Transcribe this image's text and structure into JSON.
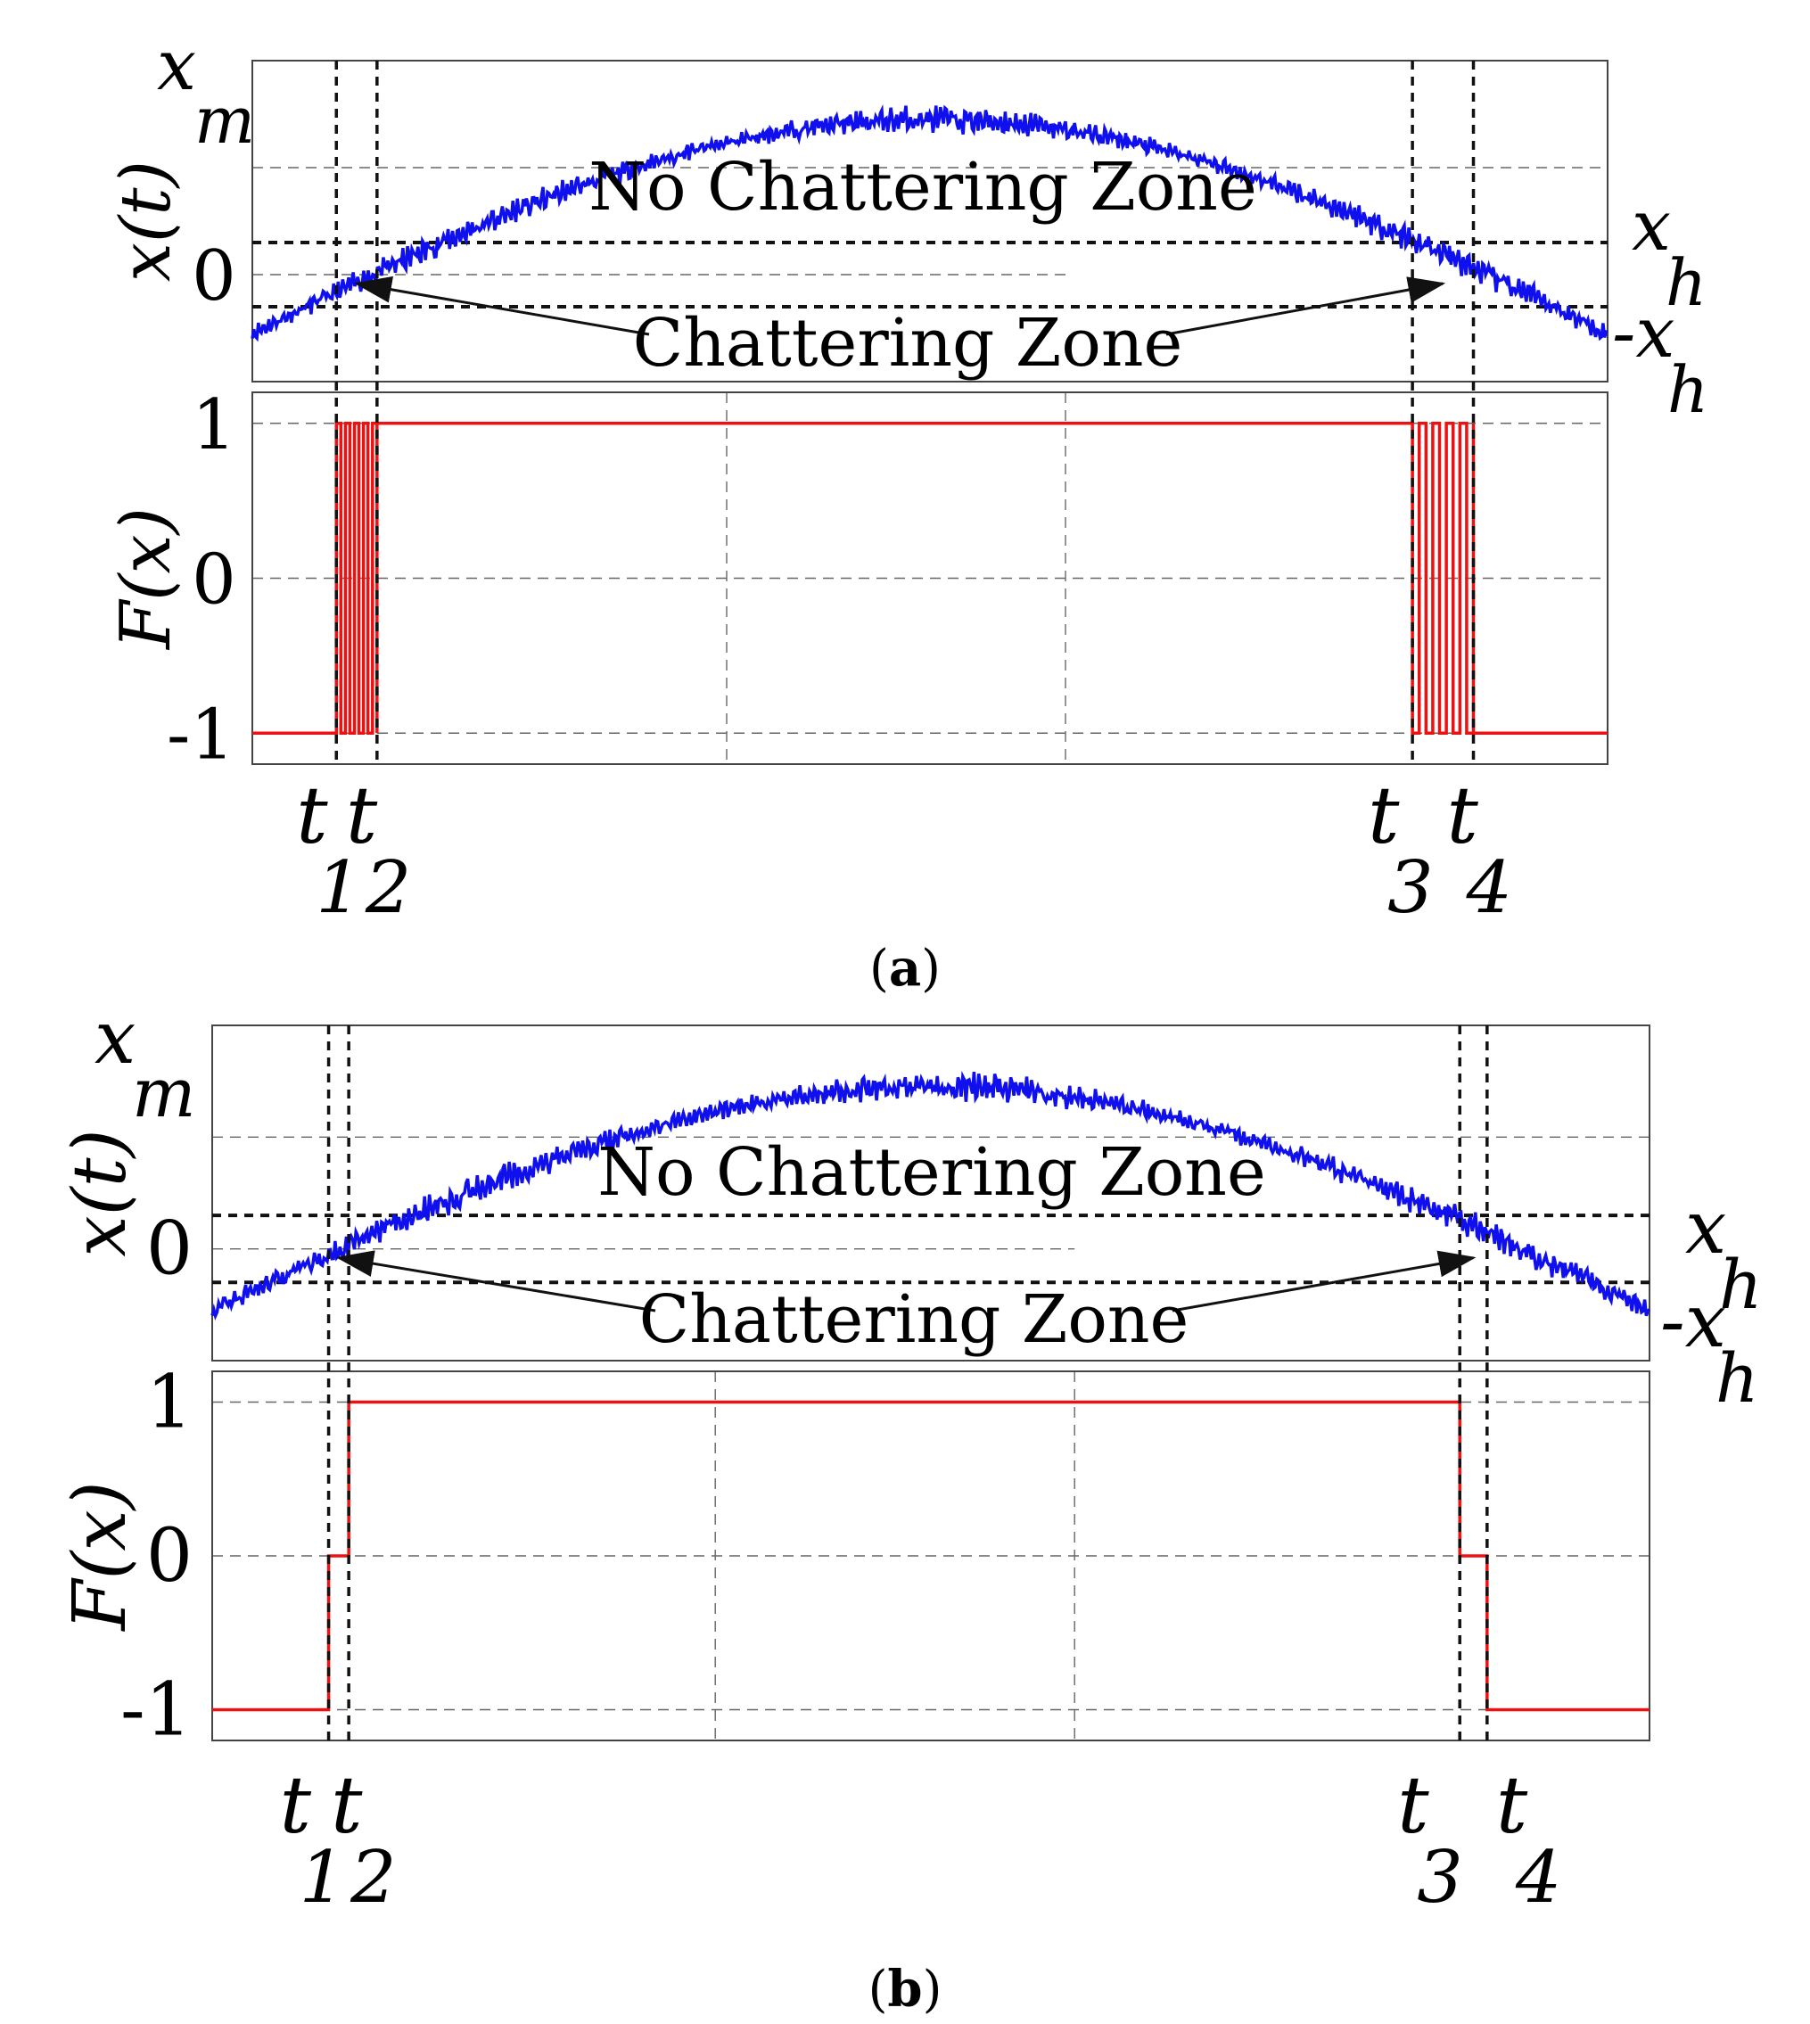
{
  "colors": {
    "signal": "#1010ee",
    "switching": "#ee1111",
    "threshold": "#111111"
  },
  "chart_data": [
    {
      "type": "line",
      "panel": "a",
      "caption_label": "a",
      "caption_open": "(",
      "caption_close": ")",
      "top_plot": {
        "ylabel": "x(t)",
        "tick_label_zero": "0",
        "label_xm_base": "x",
        "label_xm_sub": "m",
        "label_xh_base": "x",
        "label_xh_sub": "h",
        "label_neg_xh_base": "-x",
        "label_neg_xh_sub": "h",
        "annotation_no_chatter": "No Chattering Zone",
        "annotation_chatter": "Chattering Zone",
        "xlim": [
          0,
          1
        ],
        "ylim": [
          -1.0,
          2.0
        ],
        "xm": 2.0,
        "xh": 0.3,
        "signal": {
          "equation": "2*sin(pi*t)-0.55",
          "noise_amplitude": 0.12
        }
      },
      "bottom_plot": {
        "ylabel": "F(x)",
        "ticks": [
          "1",
          "0",
          "-1"
        ],
        "tick_values": [
          1,
          0,
          -1
        ],
        "ylim": [
          -1.2,
          1.2
        ],
        "switching_function": "sign"
      },
      "time_markers": [
        {
          "base": "t",
          "sub": "1",
          "t": 0.062
        },
        {
          "base": "t",
          "sub": "2",
          "t": 0.092
        },
        {
          "base": "t",
          "sub": "3",
          "t": 0.856
        },
        {
          "base": "t",
          "sub": "4",
          "t": 0.901
        }
      ]
    },
    {
      "type": "line",
      "panel": "b",
      "caption_label": "b",
      "caption_open": "(",
      "caption_close": ")",
      "top_plot": {
        "ylabel": "x(t)",
        "tick_label_zero": "0",
        "label_xm_base": "x",
        "label_xm_sub": "m",
        "label_xh_base": "x",
        "label_xh_sub": "h",
        "label_neg_xh_base": "-x",
        "label_neg_xh_sub": "h",
        "annotation_no_chatter": "No Chattering Zone",
        "annotation_chatter": "Chattering Zone",
        "xlim": [
          0,
          1
        ],
        "ylim": [
          -1.0,
          2.0
        ],
        "xm": 2.0,
        "xh": 0.3,
        "signal": {
          "equation": "2*sin(pi*t)-0.55",
          "noise_amplitude": 0.12
        }
      },
      "bottom_plot": {
        "ylabel": "F(x)",
        "ticks": [
          "1",
          "0",
          "-1"
        ],
        "tick_values": [
          1,
          0,
          -1
        ],
        "ylim": [
          -1.2,
          1.2
        ],
        "switching_function": "three-level"
      },
      "time_markers": [
        {
          "base": "t",
          "sub": "1",
          "t": 0.081
        },
        {
          "base": "t",
          "sub": "2",
          "t": 0.095
        },
        {
          "base": "t",
          "sub": "3",
          "t": 0.868
        },
        {
          "base": "t",
          "sub": "4",
          "t": 0.887
        }
      ]
    }
  ]
}
